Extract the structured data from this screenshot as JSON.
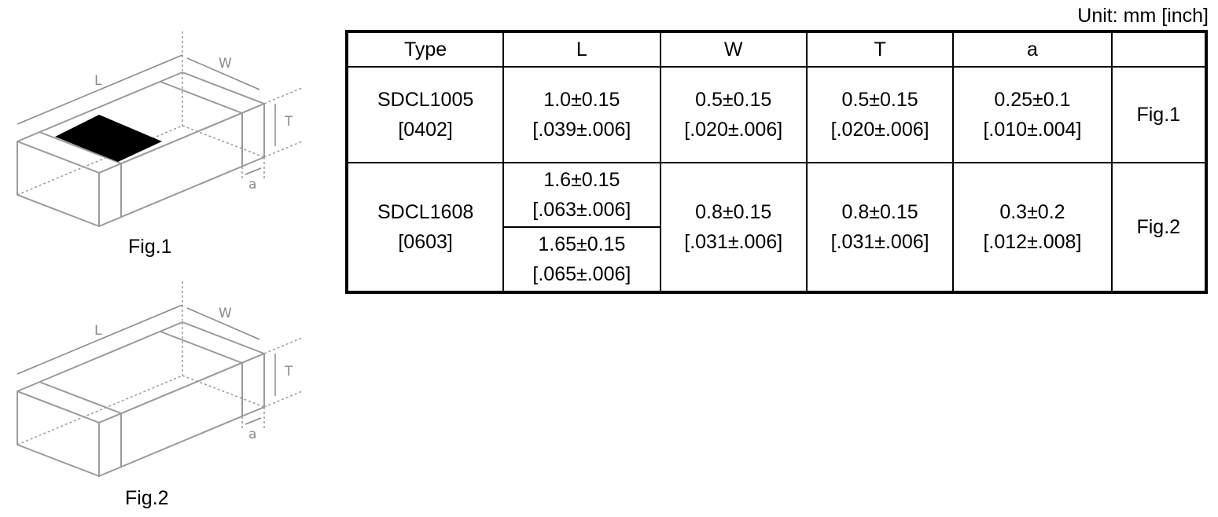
{
  "unit_note": "Unit: mm [inch]",
  "figures": [
    {
      "caption": "Fig.1",
      "labels": {
        "L": "L",
        "W": "W",
        "T": "T",
        "a": "a"
      }
    },
    {
      "caption": "Fig.2",
      "labels": {
        "L": "L",
        "W": "W",
        "T": "T",
        "a": "a"
      }
    }
  ],
  "table": {
    "headers": [
      "Type",
      "L",
      "W",
      "T",
      "a",
      ""
    ],
    "rows": [
      {
        "type": [
          "SDCL1005",
          "[0402]"
        ],
        "L": [
          [
            "1.0±0.15",
            "[.039±.006]"
          ]
        ],
        "W": [
          "0.5±0.15",
          "[.020±.006]"
        ],
        "T": [
          "0.5±0.15",
          "[.020±.006]"
        ],
        "a": [
          "0.25±0.1",
          "[.010±.004]"
        ],
        "fig": "Fig.1"
      },
      {
        "type": [
          "SDCL1608",
          "[0603]"
        ],
        "L": [
          [
            "1.6±0.15",
            "[.063±.006]"
          ],
          [
            "1.65±0.15",
            "[.065±.006]"
          ]
        ],
        "W": [
          "0.8±0.15",
          "[.031±.006]"
        ],
        "T": [
          "0.8±0.15",
          "[.031±.006]"
        ],
        "a": [
          "0.3±0.2",
          "[.012±.008]"
        ],
        "fig": "Fig.2"
      }
    ]
  }
}
